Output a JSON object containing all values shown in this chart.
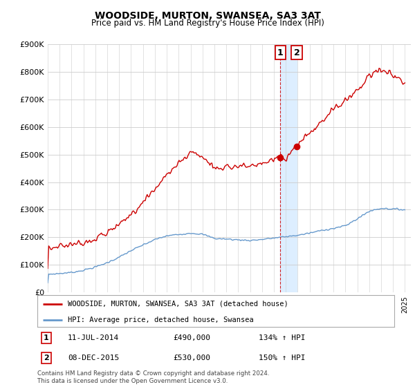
{
  "title": "WOODSIDE, MURTON, SWANSEA, SA3 3AT",
  "subtitle": "Price paid vs. HM Land Registry's House Price Index (HPI)",
  "ylim": [
    0,
    900000
  ],
  "yticks": [
    0,
    100000,
    200000,
    300000,
    400000,
    500000,
    600000,
    700000,
    800000,
    900000
  ],
  "ytick_labels": [
    "£0",
    "£100K",
    "£200K",
    "£300K",
    "£400K",
    "£500K",
    "£600K",
    "£700K",
    "£800K",
    "£900K"
  ],
  "hpi_color": "#6699cc",
  "price_color": "#cc0000",
  "shade_color": "#ddeeff",
  "sale1_x": 2014.542,
  "sale2_x": 2015.917,
  "sale1_y": 490000,
  "sale2_y": 530000,
  "sale1_date": "11-JUL-2014",
  "sale1_price": "£490,000",
  "sale1_hpi": "134% ↑ HPI",
  "sale2_date": "08-DEC-2015",
  "sale2_price": "£530,000",
  "sale2_hpi": "150% ↑ HPI",
  "legend_label1": "WOODSIDE, MURTON, SWANSEA, SA3 3AT (detached house)",
  "legend_label2": "HPI: Average price, detached house, Swansea",
  "footer": "Contains HM Land Registry data © Crown copyright and database right 2024.\nThis data is licensed under the Open Government Licence v3.0.",
  "background_color": "#ffffff",
  "grid_color": "#cccccc",
  "xlim_left": 1995.0,
  "xlim_right": 2025.5
}
